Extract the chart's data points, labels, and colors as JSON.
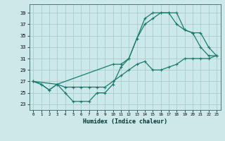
{
  "xlabel": "Humidex (Indice chaleur)",
  "bg_color": "#cce8e8",
  "grid_color": "#aacccc",
  "line_color": "#1a7a6e",
  "xlim": [
    -0.5,
    23.5
  ],
  "ylim": [
    22.0,
    40.5
  ],
  "xticks": [
    0,
    1,
    2,
    3,
    4,
    5,
    6,
    7,
    8,
    9,
    10,
    11,
    12,
    13,
    14,
    15,
    16,
    17,
    18,
    19,
    20,
    21,
    22,
    23
  ],
  "yticks": [
    23,
    25,
    27,
    29,
    31,
    33,
    35,
    37,
    39
  ],
  "line1_x": [
    0,
    1,
    2,
    3,
    4,
    5,
    6,
    7,
    8,
    9,
    10,
    11,
    12,
    13,
    14,
    15,
    16,
    17,
    18,
    19,
    20,
    21,
    22,
    23
  ],
  "line1_y": [
    27,
    26.5,
    25.5,
    26.5,
    25,
    23.5,
    23.5,
    23.5,
    25,
    25,
    26.5,
    29.5,
    31,
    34.5,
    38,
    39,
    39,
    39,
    37,
    36,
    35.5,
    35.5,
    33,
    31.5
  ],
  "line2_x": [
    0,
    1,
    2,
    3,
    4,
    5,
    6,
    7,
    8,
    9,
    10,
    11,
    12,
    13,
    14,
    15,
    16,
    17,
    18,
    19,
    20,
    21,
    22,
    23
  ],
  "line2_y": [
    27,
    26.5,
    25.5,
    26.5,
    26,
    26,
    26,
    26,
    26,
    26,
    27,
    28,
    29,
    30,
    30.5,
    29,
    29,
    29.5,
    30,
    31,
    31,
    31,
    31,
    31.5
  ],
  "line3_x": [
    0,
    3,
    10,
    11,
    12,
    13,
    14,
    15,
    16,
    17,
    18,
    19,
    20,
    21,
    22,
    23
  ],
  "line3_y": [
    27,
    26.5,
    30,
    30,
    31,
    34.5,
    37,
    38,
    39,
    39,
    39,
    36,
    35.5,
    33,
    31.5,
    31.5
  ]
}
